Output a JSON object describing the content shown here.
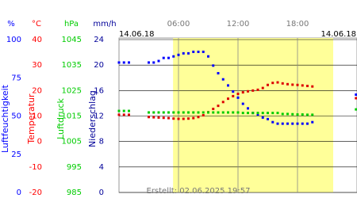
{
  "chart_data": {
    "type": "scatter",
    "date_left": "14.06.18",
    "date_right": "14.06.18",
    "footer": "Erstellt: 02.06.2025 19:57",
    "xlim": [
      0,
      24
    ],
    "xticks": [
      {
        "value": 6,
        "label": "06:00"
      },
      {
        "value": 12,
        "label": "12:00"
      },
      {
        "value": 18,
        "label": "18:00"
      }
    ],
    "daylight": [
      5.45,
      21.6
    ],
    "daylight_color": "#ffff99",
    "axes": [
      {
        "unit": "%",
        "label": "Luftfeuchtigkeit",
        "color": "#0000ff",
        "ylim": [
          0,
          100
        ],
        "yticks": [
          0,
          25,
          50,
          75,
          100
        ]
      },
      {
        "unit": "°C",
        "label": "Temperatur",
        "color": "#ff0000",
        "ylim": [
          -20,
          40
        ],
        "yticks": [
          -20,
          -10,
          0,
          10,
          20,
          30,
          40
        ]
      },
      {
        "unit": "hPa",
        "label": "Luftdruck",
        "color": "#00cc00",
        "ylim": [
          985,
          1045
        ],
        "yticks": [
          985,
          995,
          1005,
          1015,
          1025,
          1035,
          1045
        ]
      },
      {
        "unit": "mm/h",
        "label": "Niederschlag",
        "color": "#000099",
        "ylim": [
          0,
          24
        ],
        "yticks": [
          0,
          4,
          8,
          12,
          16,
          20,
          24
        ]
      }
    ],
    "grid_axis": 3,
    "x": [
      0,
      0.5,
      1,
      3,
      3.5,
      4,
      4.5,
      5,
      5.5,
      6,
      6.5,
      7,
      7.5,
      8,
      8.5,
      9,
      9.5,
      10,
      10.5,
      11,
      11.5,
      12,
      12.5,
      13,
      13.5,
      14,
      14.5,
      15,
      15.5,
      16,
      16.5,
      17,
      17.5,
      18,
      18.5,
      19,
      19.5,
      23.9
    ],
    "series": [
      {
        "axis": 0,
        "color": "#0000ff",
        "values": [
          85,
          85,
          85,
          85,
          85,
          86,
          88,
          88,
          89,
          90,
          91,
          91,
          92,
          92,
          92,
          89,
          83,
          78,
          74,
          70,
          66,
          62,
          58,
          55,
          52,
          51,
          49,
          48,
          46,
          45,
          45,
          45,
          45,
          45,
          45,
          45,
          46,
          64
        ]
      },
      {
        "axis": 1,
        "color": "#dd0000",
        "values": [
          10.5,
          10.5,
          10.5,
          9.6,
          9.5,
          9.4,
          9.3,
          9.2,
          9.0,
          8.9,
          8.9,
          9.0,
          9.2,
          9.6,
          10.3,
          11.5,
          12.8,
          14.0,
          15.5,
          16.8,
          17.8,
          18.7,
          19.3,
          19.7,
          20.0,
          20.3,
          21.0,
          22.2,
          23.0,
          23.2,
          22.8,
          22.5,
          22.3,
          22.2,
          22.0,
          21.8,
          21.6,
          17.0
        ]
      },
      {
        "axis": 2,
        "color": "#00cc00",
        "values": [
          1017.0,
          1017.0,
          1017.0,
          1016.4,
          1016.4,
          1016.4,
          1016.4,
          1016.4,
          1016.4,
          1016.4,
          1016.4,
          1016.4,
          1016.4,
          1016.4,
          1016.4,
          1016.4,
          1016.4,
          1016.4,
          1016.4,
          1016.4,
          1016.4,
          1016.4,
          1016.2,
          1016.2,
          1016.2,
          1016.2,
          1016.2,
          1016.2,
          1016.2,
          1016.2,
          1015.8,
          1015.8,
          1015.7,
          1015.6,
          1015.6,
          1015.5,
          1015.5,
          1017.6
        ]
      }
    ]
  }
}
